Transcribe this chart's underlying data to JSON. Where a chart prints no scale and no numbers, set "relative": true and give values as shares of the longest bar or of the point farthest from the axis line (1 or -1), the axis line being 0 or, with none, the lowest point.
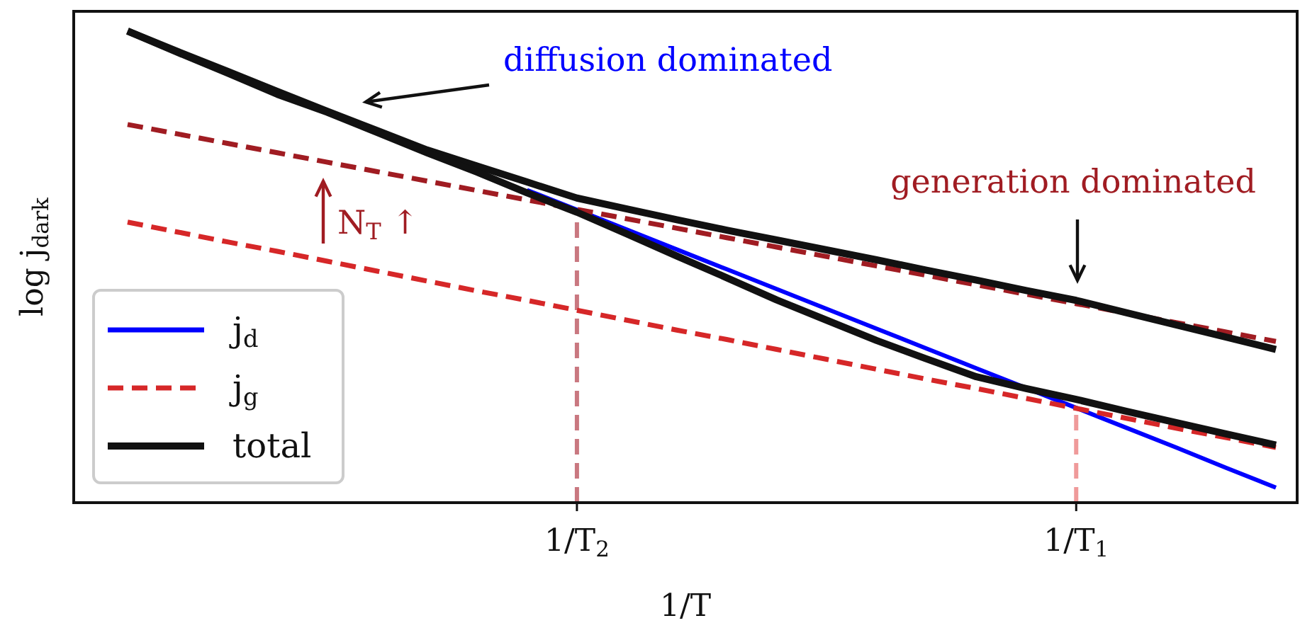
{
  "chart_data": {
    "type": "line",
    "relative": true,
    "xlabel": "1/T",
    "ylabel": "log j$_{dark}$",
    "categories": [
      null,
      null,
      null,
      null,
      null,
      null,
      null,
      null,
      null,
      "1/T$_{2}$",
      null,
      null,
      null,
      null,
      null,
      null,
      null,
      null,
      null,
      "1/T$_{1}$",
      null,
      null,
      null,
      null
    ],
    "tick_labels": "x",
    "grid": false,
    "legend": "bottom left",
    "marker": "none",
    "series": [
      {
        "color": "#c97880",
        "line_style": "dashed",
        "x": [
          "1/T$_{2}$",
          "1/T$_{2}$"
        ],
        "values": [
          0,
          0.622
        ]
      },
      {
        "color": "#ef9a9a",
        "line_style": "dashed",
        "x": [
          "1/T$_{1}$",
          "1/T$_{1}$"
        ],
        "values": [
          0,
          0.201
        ]
      },
      {
        "name": "j$_{d}$",
        "color": "#0000ff",
        "line_style": "solid",
        "values": [
          null,
          null,
          null,
          null,
          null,
          null,
          null,
          null,
          0.663,
          0.621,
          0.579,
          0.537,
          0.495,
          0.453,
          0.411,
          0.369,
          0.327,
          0.285,
          0.243,
          0.201,
          0.159,
          0.117,
          0.074,
          0.032
        ]
      },
      {
        "color": "#a01c22",
        "line_style": "dashed",
        "values": [
          0.802,
          0.782,
          0.762,
          0.742,
          0.722,
          0.702,
          0.682,
          0.662,
          0.642,
          0.622,
          0.602,
          0.582,
          0.562,
          0.542,
          0.522,
          0.502,
          0.482,
          0.462,
          0.442,
          0.422,
          0.402,
          0.382,
          0.362,
          0.342
        ]
      },
      {
        "name": "j$_{g}$",
        "color": "#d62728",
        "line_style": "dashed",
        "values": [
          0.595,
          0.574,
          0.553,
          0.533,
          0.512,
          0.491,
          0.47,
          0.449,
          0.429,
          0.408,
          0.387,
          0.366,
          0.346,
          0.325,
          0.304,
          0.283,
          0.262,
          0.242,
          0.221,
          0.2,
          0.179,
          0.158,
          0.138,
          0.117
        ]
      },
      {
        "color": "#111111",
        "line_style": "solid",
        "values": [
          1.0,
          0.957,
          0.915,
          0.872,
          0.83,
          0.789,
          0.748,
          0.714,
          0.68,
          0.646,
          0.623,
          0.6,
          0.578,
          0.557,
          0.536,
          0.515,
          0.493,
          0.472,
          0.45,
          0.429,
          0.403,
          0.377,
          0.351,
          0.325
        ]
      },
      {
        "name": "total",
        "color": "#111111",
        "line_style": "solid",
        "values": [
          1.0,
          0.955,
          0.911,
          0.866,
          0.828,
          0.785,
          0.742,
          0.701,
          0.657,
          0.616,
          0.57,
          0.523,
          0.477,
          0.43,
          0.387,
          0.344,
          0.305,
          0.267,
          0.242,
          0.219,
          0.194,
          0.17,
          0.146,
          0.122
        ]
      }
    ],
    "annotations": [
      "diffusion dominated",
      "generation dominated",
      "N$_{T}$ ↑"
    ]
  }
}
